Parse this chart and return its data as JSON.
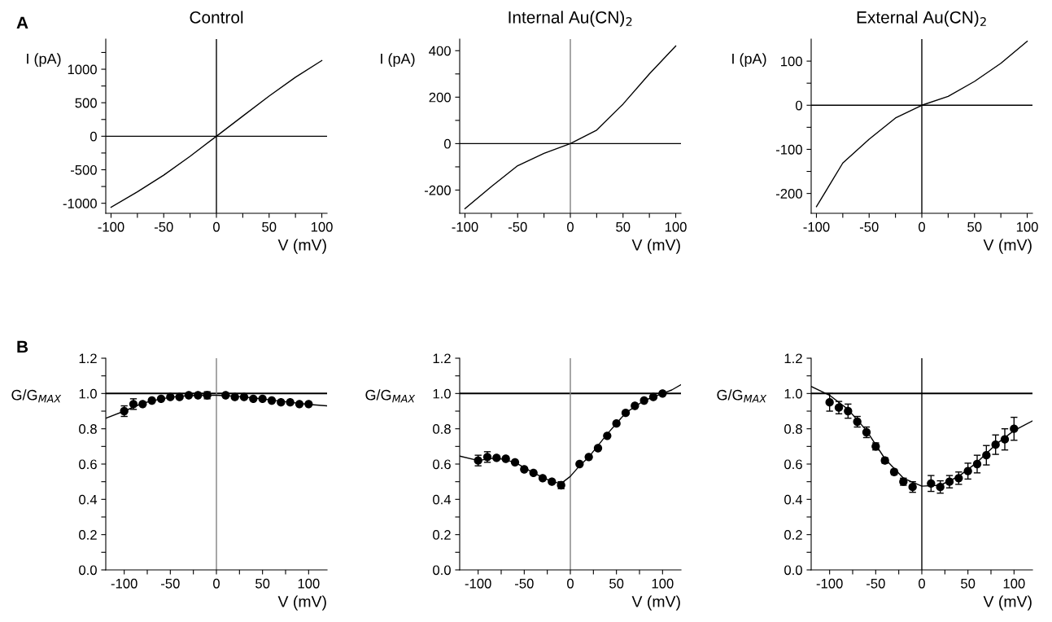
{
  "chart_data": [
    {
      "type": "line",
      "title": "Control",
      "xlabel": "V (mV)",
      "ylabel": "I (pA)",
      "annotations": [
        "A"
      ],
      "xlim": [
        -105,
        105
      ],
      "xticks": [
        -100,
        {
          "value": -75,
          "label": null
        },
        -50,
        {
          "value": -25,
          "label": null
        },
        0,
        {
          "value": 25,
          "label": null
        },
        50,
        {
          "value": 75,
          "label": null
        },
        100
      ],
      "ylim": [
        -1150,
        1450
      ],
      "yticks": [
        -1000,
        {
          "value": -750,
          "label": null
        },
        -500,
        {
          "value": -250,
          "label": null
        },
        0,
        {
          "value": 250,
          "label": null
        },
        500,
        {
          "value": 750,
          "label": null
        },
        1000,
        {
          "value": 1250,
          "label": null
        }
      ],
      "ref_lines": [
        {
          "axis": "y",
          "value": 0,
          "color": "#000000"
        },
        {
          "axis": "x",
          "value": 0,
          "color": "#000000"
        }
      ],
      "marker": "none",
      "series": [
        {
          "color": "#000000",
          "x": [
            -100,
            -75,
            -50,
            -25,
            0,
            25,
            50,
            75,
            100
          ],
          "values": [
            -1060,
            -830,
            -580,
            -300,
            0,
            300,
            600,
            880,
            1130
          ]
        }
      ]
    },
    {
      "type": "line",
      "title": "Internal Au(CN)$_{2}$",
      "xlabel": "V (mV)",
      "ylabel": "I (pA)",
      "xlim": [
        -105,
        105
      ],
      "xticks": [
        -100,
        {
          "value": -75,
          "label": null
        },
        -50,
        {
          "value": -25,
          "label": null
        },
        0,
        {
          "value": 25,
          "label": null
        },
        50,
        {
          "value": 75,
          "label": null
        },
        100
      ],
      "ylim": [
        -300,
        450
      ],
      "yticks": [
        -200,
        {
          "value": -100,
          "label": null
        },
        0,
        {
          "value": 100,
          "label": null
        },
        200,
        {
          "value": 300,
          "label": null
        },
        400
      ],
      "ref_lines": [
        {
          "axis": "y",
          "value": 0,
          "color": "#000000"
        },
        {
          "axis": "x",
          "value": 0,
          "color": "#808080"
        }
      ],
      "marker": "none",
      "series": [
        {
          "color": "#000000",
          "x": [
            -100,
            -75,
            -50,
            -25,
            0,
            25,
            50,
            75,
            100
          ],
          "values": [
            -280,
            -185,
            -95,
            -42,
            0,
            58,
            170,
            300,
            420
          ]
        }
      ]
    },
    {
      "type": "line",
      "title": "External Au(CN)$_{2}$",
      "xlabel": "V (mV)",
      "ylabel": "I (pA)",
      "xlim": [
        -105,
        105
      ],
      "xticks": [
        -100,
        {
          "value": -75,
          "label": null
        },
        -50,
        {
          "value": -25,
          "label": null
        },
        0,
        {
          "value": 25,
          "label": null
        },
        50,
        {
          "value": 75,
          "label": null
        },
        100
      ],
      "ylim": [
        -245,
        150
      ],
      "yticks": [
        -200,
        {
          "value": -150,
          "label": null
        },
        -100,
        {
          "value": -50,
          "label": null
        },
        0,
        {
          "value": 50,
          "label": null
        },
        100
      ],
      "ref_lines": [
        {
          "axis": "y",
          "value": 0,
          "color": "#000000"
        },
        {
          "axis": "x",
          "value": 0,
          "color": "#000000"
        }
      ],
      "marker": "none",
      "series": [
        {
          "color": "#000000",
          "x": [
            -100,
            -75,
            -50,
            -25,
            0,
            25,
            50,
            75,
            100
          ],
          "values": [
            -230,
            -131,
            -77,
            -29,
            0,
            20,
            54,
            95,
            145
          ]
        }
      ]
    },
    {
      "type": "scatter",
      "xlabel": "V (mV)",
      "ylabel": "G/G$_{MAX}$",
      "annotations": [
        "B"
      ],
      "xlim": [
        -120,
        120
      ],
      "xticks": [
        -100,
        {
          "value": -75,
          "label": null
        },
        -50,
        {
          "value": -25,
          "label": null
        },
        0,
        {
          "value": 25,
          "label": null
        },
        50,
        {
          "value": 75,
          "label": null
        },
        100
      ],
      "ylim": [
        0,
        1.2
      ],
      "yticks": [
        {
          "value": 0,
          "label": "0.0"
        },
        {
          "value": 0.1,
          "label": null
        },
        0.2,
        {
          "value": 0.3,
          "label": null
        },
        0.4,
        {
          "value": 0.5,
          "label": null
        },
        0.6,
        {
          "value": 0.7,
          "label": null
        },
        0.8,
        {
          "value": 0.9,
          "label": null
        },
        {
          "value": 1.0,
          "label": "1.0"
        },
        {
          "value": 1.1,
          "label": null
        },
        1.2
      ],
      "ref_lines": [
        {
          "axis": "y",
          "value": 1.0,
          "color": "#000000"
        },
        {
          "axis": "x",
          "value": 0,
          "color": "#808080"
        }
      ],
      "series": [
        {
          "marker": "circle",
          "color": "#000000",
          "x": [
            -100,
            -90,
            -80,
            -70,
            -60,
            -50,
            -40,
            -30,
            -20,
            -10,
            10,
            20,
            30,
            40,
            50,
            60,
            70,
            80,
            90,
            100
          ],
          "values": [
            0.9,
            0.94,
            0.94,
            0.96,
            0.97,
            0.98,
            0.98,
            0.99,
            0.99,
            0.99,
            0.99,
            0.98,
            0.98,
            0.97,
            0.97,
            0.96,
            0.95,
            0.95,
            0.94,
            0.94
          ],
          "errors": [
            0.03,
            0.03,
            null,
            null,
            null,
            null,
            null,
            null,
            null,
            0.02,
            null,
            null,
            null,
            null,
            null,
            null,
            null,
            null,
            null,
            null
          ]
        },
        {
          "type": "line",
          "color": "#000000",
          "x": [
            -120,
            -100,
            -80,
            -60,
            -40,
            -20,
            0,
            20,
            40,
            60,
            80,
            100,
            120
          ],
          "values": [
            0.86,
            0.9,
            0.945,
            0.97,
            0.985,
            0.99,
            0.99,
            0.985,
            0.975,
            0.963,
            0.95,
            0.938,
            0.93
          ]
        }
      ]
    },
    {
      "type": "scatter",
      "xlabel": "V (mV)",
      "ylabel": "G/G$_{MAX}$",
      "xlim": [
        -120,
        120
      ],
      "xticks": [
        -100,
        {
          "value": -75,
          "label": null
        },
        -50,
        {
          "value": -25,
          "label": null
        },
        0,
        {
          "value": 25,
          "label": null
        },
        50,
        {
          "value": 75,
          "label": null
        },
        100
      ],
      "ylim": [
        0,
        1.2
      ],
      "yticks": [
        {
          "value": 0,
          "label": "0.0"
        },
        {
          "value": 0.1,
          "label": null
        },
        0.2,
        {
          "value": 0.3,
          "label": null
        },
        0.4,
        {
          "value": 0.5,
          "label": null
        },
        0.6,
        {
          "value": 0.7,
          "label": null
        },
        0.8,
        {
          "value": 0.9,
          "label": null
        },
        {
          "value": 1.0,
          "label": "1.0"
        },
        {
          "value": 1.1,
          "label": null
        },
        1.2
      ],
      "ref_lines": [
        {
          "axis": "y",
          "value": 1.0,
          "color": "#000000"
        },
        {
          "axis": "x",
          "value": 0,
          "color": "#808080"
        }
      ],
      "series": [
        {
          "marker": "circle",
          "color": "#000000",
          "x": [
            -100,
            -90,
            -80,
            -70,
            -60,
            -50,
            -40,
            -30,
            -20,
            -10,
            10,
            20,
            30,
            40,
            50,
            60,
            70,
            80,
            90,
            100
          ],
          "values": [
            0.62,
            0.64,
            0.635,
            0.63,
            0.61,
            0.57,
            0.55,
            0.52,
            0.5,
            0.48,
            0.6,
            0.64,
            0.69,
            0.76,
            0.83,
            0.89,
            0.93,
            0.96,
            0.98,
            1.0
          ],
          "errors": [
            0.03,
            0.03,
            null,
            null,
            null,
            null,
            null,
            null,
            null,
            0.02,
            null,
            null,
            null,
            null,
            null,
            null,
            null,
            null,
            null,
            null
          ]
        },
        {
          "type": "line",
          "color": "#000000",
          "x": [
            -120,
            -100,
            -80,
            -60,
            -40,
            -20,
            -10,
            0,
            10,
            20,
            40,
            60,
            80,
            100,
            110,
            120
          ],
          "values": [
            0.645,
            0.62,
            0.635,
            0.61,
            0.55,
            0.5,
            0.49,
            0.53,
            0.59,
            0.64,
            0.77,
            0.89,
            0.96,
            1.0,
            1.02,
            1.05
          ]
        }
      ]
    },
    {
      "type": "scatter",
      "xlabel": "V (mV)",
      "ylabel": "G/G$_{MAX}$",
      "xlim": [
        -120,
        120
      ],
      "xticks": [
        -100,
        {
          "value": -75,
          "label": null
        },
        -50,
        {
          "value": -25,
          "label": null
        },
        0,
        {
          "value": 25,
          "label": null
        },
        50,
        {
          "value": 75,
          "label": null
        },
        100
      ],
      "ylim": [
        0,
        1.2
      ],
      "yticks": [
        {
          "value": 0,
          "label": "0.0"
        },
        {
          "value": 0.1,
          "label": null
        },
        0.2,
        {
          "value": 0.3,
          "label": null
        },
        0.4,
        {
          "value": 0.5,
          "label": null
        },
        0.6,
        {
          "value": 0.7,
          "label": null
        },
        0.8,
        {
          "value": 0.9,
          "label": null
        },
        {
          "value": 1.0,
          "label": "1.0"
        },
        {
          "value": 1.1,
          "label": null
        },
        1.2
      ],
      "ref_lines": [
        {
          "axis": "y",
          "value": 1.0,
          "color": "#000000"
        },
        {
          "axis": "x",
          "value": 0,
          "color": "#000000"
        }
      ],
      "series": [
        {
          "marker": "circle",
          "color": "#000000",
          "x": [
            -100,
            -90,
            -80,
            -70,
            -60,
            -50,
            -40,
            -30,
            -20,
            -10,
            10,
            20,
            30,
            40,
            50,
            60,
            70,
            80,
            90,
            100
          ],
          "values": [
            0.95,
            0.92,
            0.9,
            0.84,
            0.78,
            0.7,
            0.62,
            0.555,
            0.5,
            0.47,
            0.49,
            0.47,
            0.5,
            0.52,
            0.56,
            0.6,
            0.65,
            0.71,
            0.74,
            0.8
          ],
          "errors": [
            0.05,
            0.035,
            0.04,
            0.03,
            0.03,
            0.02,
            0.015,
            0.015,
            0.02,
            0.03,
            0.045,
            0.035,
            0.035,
            0.035,
            0.045,
            0.05,
            0.055,
            0.055,
            0.06,
            0.065
          ]
        },
        {
          "type": "line",
          "color": "#000000",
          "x": [
            -120,
            -100,
            -80,
            -60,
            -40,
            -20,
            0,
            20,
            40,
            60,
            80,
            100,
            120
          ],
          "values": [
            1.04,
            0.99,
            0.91,
            0.79,
            0.63,
            0.52,
            0.475,
            0.48,
            0.53,
            0.61,
            0.71,
            0.79,
            0.845
          ]
        }
      ]
    }
  ]
}
